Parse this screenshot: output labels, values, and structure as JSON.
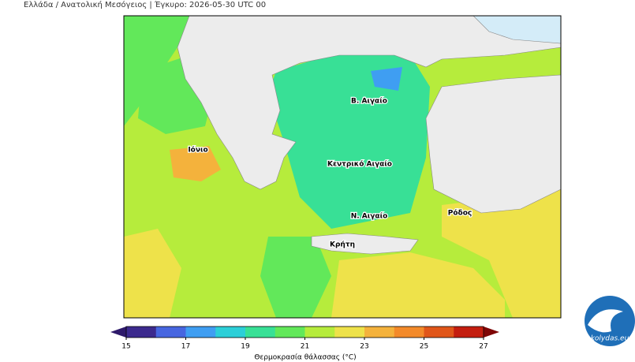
{
  "header": {
    "title": "Ελλάδα / Ανατολική Μεσόγειος  |  Έγκυρο: 2026-05-30 UTC 00"
  },
  "map": {
    "labels": [
      "Β. Αιγαίο",
      "Κεντρικό Αιγαίο",
      "Ν. Αιγαίο",
      "Ρόδος",
      "Κρήτη",
      "Ιόνιο"
    ]
  },
  "colorbar": {
    "lim": [
      15,
      27
    ],
    "ticks": [
      15,
      17,
      19,
      21,
      23,
      25,
      27
    ],
    "colors": [
      "#3c2a8e",
      "#4766e0",
      "#3f9ef2",
      "#2ccfd8",
      "#38e096",
      "#62e85a",
      "#b6ec3c",
      "#eee24a",
      "#f4b23c",
      "#f38a2a",
      "#e0561a",
      "#c41e10"
    ],
    "under_color": "#2e1a6a",
    "over_color": "#7e0606",
    "label": "Θερμοκρασία θάλασσας (°C)"
  },
  "logo": {
    "text": "kolydas.eu"
  }
}
